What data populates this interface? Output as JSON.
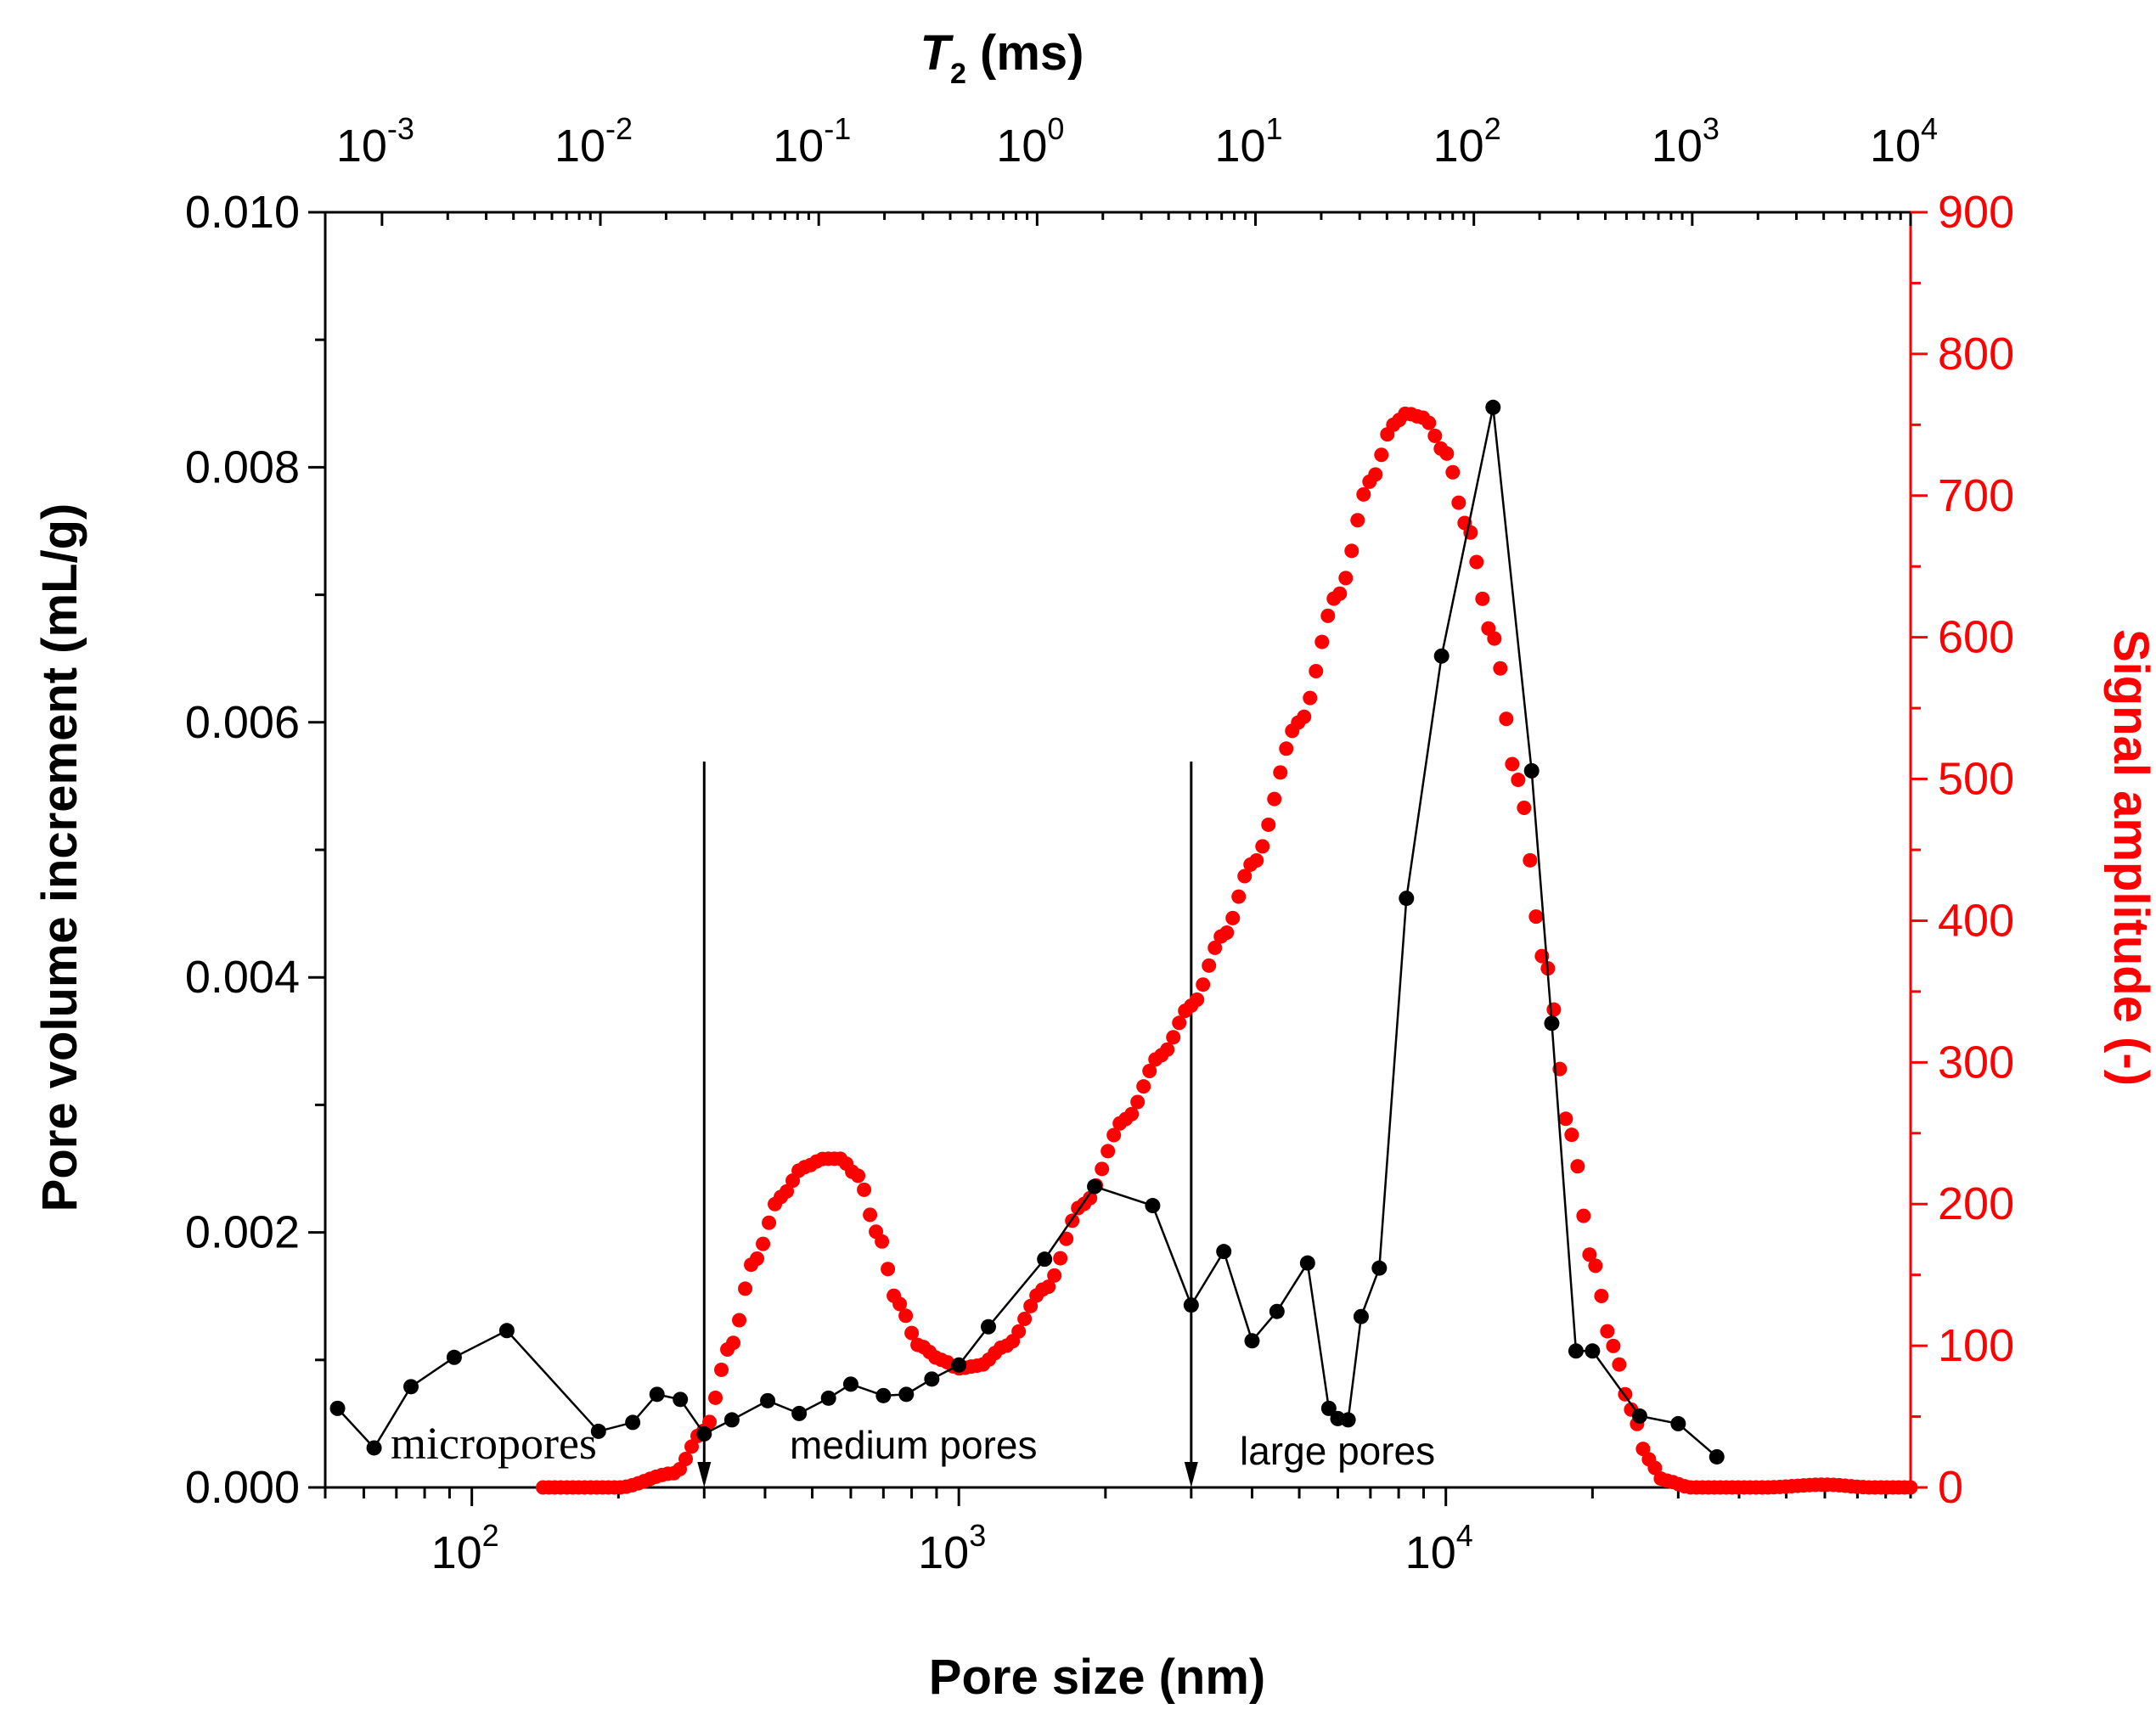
{
  "chart_data": {
    "type": "scatter",
    "title": "",
    "xlabel": "Pore size (nm)",
    "x_top_label_symbol": "T",
    "x_top_label_subscript": "2",
    "x_top_label_unit": " (ms)",
    "ylabel_left": "Pore volume increment (mL/g)",
    "ylabel_right": "Signal amplitude (-)",
    "xscale": "log",
    "xlim": [
      50,
      90000
    ],
    "ylim_left": [
      0,
      0.01
    ],
    "ylim_right": [
      0,
      900
    ],
    "x_ticks": [
      {
        "value": 100,
        "base": "10",
        "exp": "2"
      },
      {
        "value": 1000,
        "base": "10",
        "exp": "3"
      },
      {
        "value": 10000,
        "base": "10",
        "exp": "4"
      }
    ],
    "x_top_ticks": [
      {
        "base": "10",
        "exp": "-3"
      },
      {
        "base": "10",
        "exp": "-2"
      },
      {
        "base": "10",
        "exp": "-1"
      },
      {
        "base": "10",
        "exp": "0"
      },
      {
        "base": "10",
        "exp": "1"
      },
      {
        "base": "10",
        "exp": "2"
      },
      {
        "base": "10",
        "exp": "3"
      },
      {
        "base": "10",
        "exp": "4"
      }
    ],
    "x_top_range_decades": [
      -3.26,
      4.0
    ],
    "y_left_ticks": [
      "0.000",
      "0.002",
      "0.004",
      "0.006",
      "0.008",
      "0.010"
    ],
    "y_right_ticks": [
      "0",
      "100",
      "200",
      "300",
      "400",
      "500",
      "600",
      "700",
      "800",
      "900"
    ],
    "colors": {
      "series_mip": "#000000",
      "series_nmr": "#ff0000"
    },
    "series": [
      {
        "name": "Pore volume increment",
        "axis": "left",
        "style": "line-marker",
        "x": [
          53,
          63,
          75,
          92,
          118,
          182,
          214,
          240,
          268,
          300,
          342,
          405,
          470,
          540,
          600,
          700,
          780,
          880,
          1000,
          1150,
          1500,
          1900,
          2500,
          3000,
          3500,
          4000,
          4500,
          5200,
          5750,
          6000,
          6300,
          6700,
          7300,
          8300,
          9800,
          12500,
          15000,
          16500,
          18500,
          20000,
          25000,
          30000,
          36000
        ],
        "values": [
          0.00062,
          0.00031,
          0.00079,
          0.00102,
          0.00123,
          0.00044,
          0.00051,
          0.00073,
          0.00069,
          0.00042,
          0.00053,
          0.00068,
          0.00058,
          0.0007,
          0.00081,
          0.00072,
          0.00073,
          0.00085,
          0.00096,
          0.00126,
          0.00179,
          0.00236,
          0.00221,
          0.00143,
          0.00185,
          0.00115,
          0.00138,
          0.00176,
          0.00062,
          0.00054,
          0.00053,
          0.00134,
          0.00172,
          0.00462,
          0.00652,
          0.00847,
          0.00562,
          0.00364,
          0.00107,
          0.00107,
          0.00056,
          0.0005,
          0.00024
        ]
      },
      {
        "name": "Signal amplitude",
        "axis": "right",
        "style": "marker-dense",
        "x": [
          140,
          200,
          260,
          300,
          340,
          380,
          430,
          480,
          530,
          570,
          620,
          680,
          750,
          830,
          920,
          1000,
          1100,
          1250,
          1500,
          1800,
          2200,
          2600,
          3000,
          3500,
          4000,
          5000,
          6000,
          7000,
          7800,
          8300,
          9000,
          10000,
          11000,
          12500,
          14000,
          16000,
          18000,
          20000,
          22000,
          24000,
          26000,
          28000,
          32000,
          45000,
          60000,
          75000,
          90000
        ],
        "values": [
          0,
          0,
          10,
          40,
          100,
          160,
          205,
          226,
          232,
          232,
          220,
          180,
          130,
          100,
          90,
          84,
          86,
          100,
          140,
          200,
          260,
          305,
          340,
          390,
          440,
          540,
          630,
          710,
          750,
          758,
          755,
          730,
          680,
          600,
          500,
          370,
          250,
          160,
          100,
          55,
          20,
          5,
          0,
          0,
          2,
          0,
          0
        ]
      }
    ],
    "dividers": [
      300,
      3000
    ],
    "annotations": [
      "micropores",
      "medium pores",
      "large pores"
    ]
  }
}
